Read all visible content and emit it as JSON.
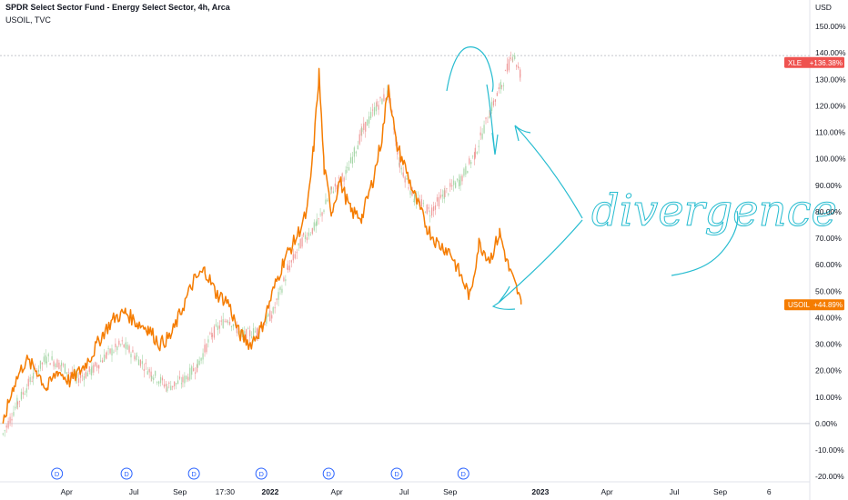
{
  "header": {
    "title": "SPDR Select Sector Fund - Energy Select Sector, 4h, Arca",
    "subtitle": "USOIL, TVC"
  },
  "chart_data": {
    "type": "line",
    "title": "SPDR Select Sector Fund - Energy Select Sector, 4h, Arca",
    "subtitle": "USOIL, TVC",
    "y_unit": "USD",
    "ylabel": "",
    "ylim": [
      -22,
      160
    ],
    "yticks": [
      "-20.00%",
      "-10.00%",
      "0.00%",
      "10.00%",
      "20.00%",
      "30.00%",
      "40.00%",
      "50.00%",
      "60.00%",
      "70.00%",
      "80.00%",
      "90.00%",
      "100.00%",
      "110.00%",
      "120.00%",
      "130.00%",
      "140.00%",
      "150.00%"
    ],
    "yticks_values": [
      -20,
      -10,
      0,
      10,
      20,
      30,
      40,
      50,
      60,
      70,
      80,
      90,
      100,
      110,
      120,
      130,
      140,
      150
    ],
    "xlim": [
      "2021-01-01",
      "2023-12-31"
    ],
    "xticks": [
      {
        "label": "Apr",
        "date": "2021-04-01",
        "bold": false
      },
      {
        "label": "Jul",
        "date": "2021-07-01",
        "bold": false
      },
      {
        "label": "Sep",
        "date": "2021-09-01",
        "bold": false
      },
      {
        "label": "17:30",
        "date": "2021-11-01",
        "bold": false
      },
      {
        "label": "2022",
        "date": "2022-01-01",
        "bold": true
      },
      {
        "label": "Apr",
        "date": "2022-04-01",
        "bold": false
      },
      {
        "label": "Jul",
        "date": "2022-07-01",
        "bold": false
      },
      {
        "label": "Sep",
        "date": "2022-09-01",
        "bold": false
      },
      {
        "label": "2023",
        "date": "2023-01-01",
        "bold": true
      },
      {
        "label": "Apr",
        "date": "2023-04-01",
        "bold": false
      },
      {
        "label": "Jul",
        "date": "2023-07-01",
        "bold": false
      },
      {
        "label": "Sep",
        "date": "2023-09-01",
        "bold": false
      },
      {
        "label": "6",
        "date": "2023-11-06",
        "bold": false
      }
    ],
    "dividend_markers": {
      "label": "D",
      "dates": [
        "2021-03-19",
        "2021-06-21",
        "2021-09-20",
        "2021-12-20",
        "2022-03-21",
        "2022-06-21",
        "2022-09-19"
      ]
    },
    "reference_lines": {
      "zero": 0,
      "crosshair": 139
    },
    "series": [
      {
        "name": "XLE",
        "badge": "+136.38%",
        "last_value": 136.38,
        "color": "#ef5350",
        "style": "candles",
        "x": [
          "2021-01-05",
          "2021-01-25",
          "2021-02-15",
          "2021-03-05",
          "2021-03-25",
          "2021-04-15",
          "2021-05-05",
          "2021-05-25",
          "2021-06-15",
          "2021-07-05",
          "2021-07-25",
          "2021-08-15",
          "2021-09-05",
          "2021-09-25",
          "2021-10-15",
          "2021-11-05",
          "2021-11-25",
          "2021-12-15",
          "2022-01-05",
          "2022-01-25",
          "2022-02-15",
          "2022-03-05",
          "2022-03-25",
          "2022-04-15",
          "2022-05-05",
          "2022-05-25",
          "2022-06-10",
          "2022-06-25",
          "2022-07-15",
          "2022-08-05",
          "2022-08-25",
          "2022-09-15",
          "2022-10-05",
          "2022-10-25",
          "2022-11-10",
          "2022-11-25",
          "2022-12-05"
        ],
        "y": [
          -4,
          8,
          18,
          25,
          22,
          17,
          20,
          26,
          30,
          25,
          19,
          14,
          16,
          22,
          34,
          40,
          33,
          35,
          42,
          58,
          70,
          75,
          88,
          95,
          110,
          120,
          125,
          98,
          85,
          80,
          87,
          92,
          102,
          118,
          128,
          140,
          132
        ]
      },
      {
        "name": "USOIL",
        "badge": "+44.89%",
        "last_value": 44.89,
        "color": "#f57c00",
        "style": "line",
        "x": [
          "2021-01-05",
          "2021-01-20",
          "2021-02-05",
          "2021-02-20",
          "2021-03-05",
          "2021-03-20",
          "2021-04-05",
          "2021-04-20",
          "2021-05-05",
          "2021-05-20",
          "2021-06-05",
          "2021-06-20",
          "2021-07-05",
          "2021-07-20",
          "2021-08-05",
          "2021-08-20",
          "2021-09-05",
          "2021-09-20",
          "2021-10-05",
          "2021-10-20",
          "2021-11-05",
          "2021-11-20",
          "2021-12-05",
          "2021-12-20",
          "2022-01-05",
          "2022-01-20",
          "2022-02-05",
          "2022-02-20",
          "2022-03-01",
          "2022-03-08",
          "2022-03-15",
          "2022-03-25",
          "2022-04-05",
          "2022-04-20",
          "2022-05-05",
          "2022-05-20",
          "2022-06-01",
          "2022-06-10",
          "2022-06-20",
          "2022-07-01",
          "2022-07-15",
          "2022-08-01",
          "2022-08-15",
          "2022-09-01",
          "2022-09-15",
          "2022-09-28",
          "2022-10-10",
          "2022-10-25",
          "2022-11-07",
          "2022-11-20",
          "2022-12-01",
          "2022-12-06"
        ],
        "y": [
          0,
          15,
          24,
          20,
          13,
          20,
          16,
          20,
          26,
          34,
          40,
          42,
          38,
          36,
          30,
          33,
          44,
          54,
          58,
          49,
          46,
          34,
          30,
          36,
          50,
          62,
          70,
          80,
          105,
          132,
          96,
          80,
          92,
          80,
          78,
          92,
          108,
          128,
          106,
          98,
          86,
          74,
          68,
          65,
          56,
          48,
          68,
          62,
          72,
          58,
          50,
          45
        ]
      }
    ]
  },
  "annotation": {
    "text": "divergence",
    "color": "#26bcd0"
  }
}
